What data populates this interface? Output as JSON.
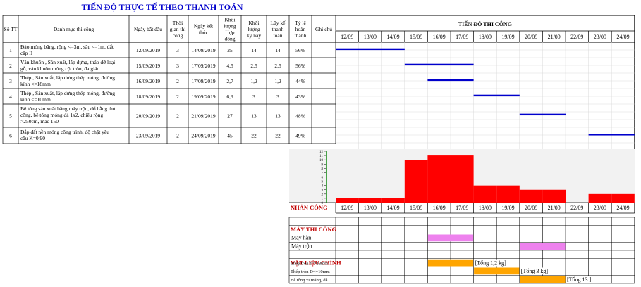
{
  "title": "TIẾN ĐỘ THỰC TẾ THEO THANH TOÁN",
  "schedule_title": "TIẾN ĐỘ THI CÔNG",
  "headers": {
    "stt": "Số TT",
    "task": "Danh mục thi công",
    "start": [
      "Ngày bắt đầu"
    ],
    "duration": [
      "Thời",
      "gian thi",
      "công"
    ],
    "end": [
      "Ngày kết",
      "thúc"
    ],
    "contract_qty": [
      "Khối",
      "lượng",
      "Hợp",
      "đồng"
    ],
    "period_qty": [
      "Khối",
      "lượng",
      "kỳ này"
    ],
    "cumulative": [
      "Lũy kế",
      "thanh",
      "toán"
    ],
    "percent": [
      "Tỷ lệ",
      "hoàn",
      "thành"
    ],
    "note": [
      "Ghi chú"
    ]
  },
  "days": [
    "12/09",
    "13/09",
    "14/09",
    "15/09",
    "16/09",
    "17/09",
    "18/09",
    "19/09",
    "20/09",
    "21/09",
    "22/09",
    "23/09",
    "24/09"
  ],
  "tasks": [
    {
      "stt": "1",
      "name": [
        "Đào móng băng, rộng <=3m, sâu <=1m, đất",
        "cấp II"
      ],
      "start": "12/09/2019",
      "duration": "3",
      "end": "14/09/2019",
      "contract": "25",
      "period": "14",
      "cumulative": "14",
      "percent": "56%",
      "bar_start": 0,
      "bar_days": 3
    },
    {
      "stt": "2",
      "name": [
        "Ván khuôn , Sản xuất, lắp dựng, tháo dỡ loại",
        "gỗ, ván khuôn móng cột tròn, đa giác"
      ],
      "start": "15/09/2019",
      "duration": "3",
      "end": "17/09/2019",
      "contract": "4,5",
      "period": "2,5",
      "cumulative": "2,5",
      "percent": "56%",
      "bar_start": 3,
      "bar_days": 3
    },
    {
      "stt": "3",
      "name": [
        "Thép , Sản xuất, lắp dựng thép móng, đường",
        "kính <=18mm"
      ],
      "start": "16/09/2019",
      "duration": "2",
      "end": "17/09/2019",
      "contract": "2,7",
      "period": "1,2",
      "cumulative": "1,2",
      "percent": "44%",
      "bar_start": 4,
      "bar_days": 2
    },
    {
      "stt": "4",
      "name": [
        "Thép , Sản xuất, lắp dựng thép móng, đường",
        "kính <=10mm"
      ],
      "start": "18/09/2019",
      "duration": "2",
      "end": "19/09/2019",
      "contract": "6,9",
      "period": "3",
      "cumulative": "3",
      "percent": "43%",
      "bar_start": 6,
      "bar_days": 2
    },
    {
      "stt": "5",
      "name": [
        "Bê tông sản xuất bằng máy trộn, đổ bằng thủ",
        "công, bê tông móng đá 1x2, chiều rộng",
        ">250cm, mác 150"
      ],
      "start": "20/09/2019",
      "duration": "2",
      "end": "21/09/2019",
      "contract": "27",
      "period": "13",
      "cumulative": "13",
      "percent": "48%",
      "bar_start": 8,
      "bar_days": 2
    },
    {
      "stt": "6",
      "name": [
        "Đắp đất nền móng công trình, độ chặt yêu",
        "cầu K=0,90"
      ],
      "start": "23/09/2019",
      "duration": "2",
      "end": "24/09/2019",
      "contract": "45",
      "period": "22",
      "cumulative": "22",
      "percent": "49%",
      "bar_start": 11,
      "bar_days": 2
    }
  ],
  "labor": {
    "label": "NHÂN CÔNG",
    "axis_max": 12,
    "values": [
      1,
      1,
      1,
      10,
      11,
      11,
      4,
      4,
      3,
      3,
      0,
      2,
      2
    ]
  },
  "machines": {
    "label": "MÁY THI CÔNG",
    "items": [
      {
        "name": "Máy hàn",
        "start": 4,
        "days": 2
      },
      {
        "name": "Máy trộn",
        "start": 8,
        "days": 2
      }
    ]
  },
  "materials": {
    "label": "VẬT LIỆU CHÍNH",
    "items": [
      {
        "name": "Thép tròn f<=18mm",
        "start": 4,
        "days": 2,
        "note": "[Tổng 1,2 kg]"
      },
      {
        "name": "Thép tròn D<=10mm",
        "start": 6,
        "days": 2,
        "note": "[Tổng 3 kg]"
      },
      {
        "name": "Bê tông xi măng, đá",
        "start": 8,
        "days": 2,
        "note": "[Tổng 13 ]"
      }
    ]
  },
  "colors": {
    "title": "#0000CC",
    "task_bar": "#0000CC",
    "labor_bar": "#FF0000",
    "labor_label": "#C00000",
    "machine_bar": "#EE82EE",
    "material_bar": "#FFA500",
    "chart_bg": "#F2F2F2",
    "axis": "#008000"
  }
}
